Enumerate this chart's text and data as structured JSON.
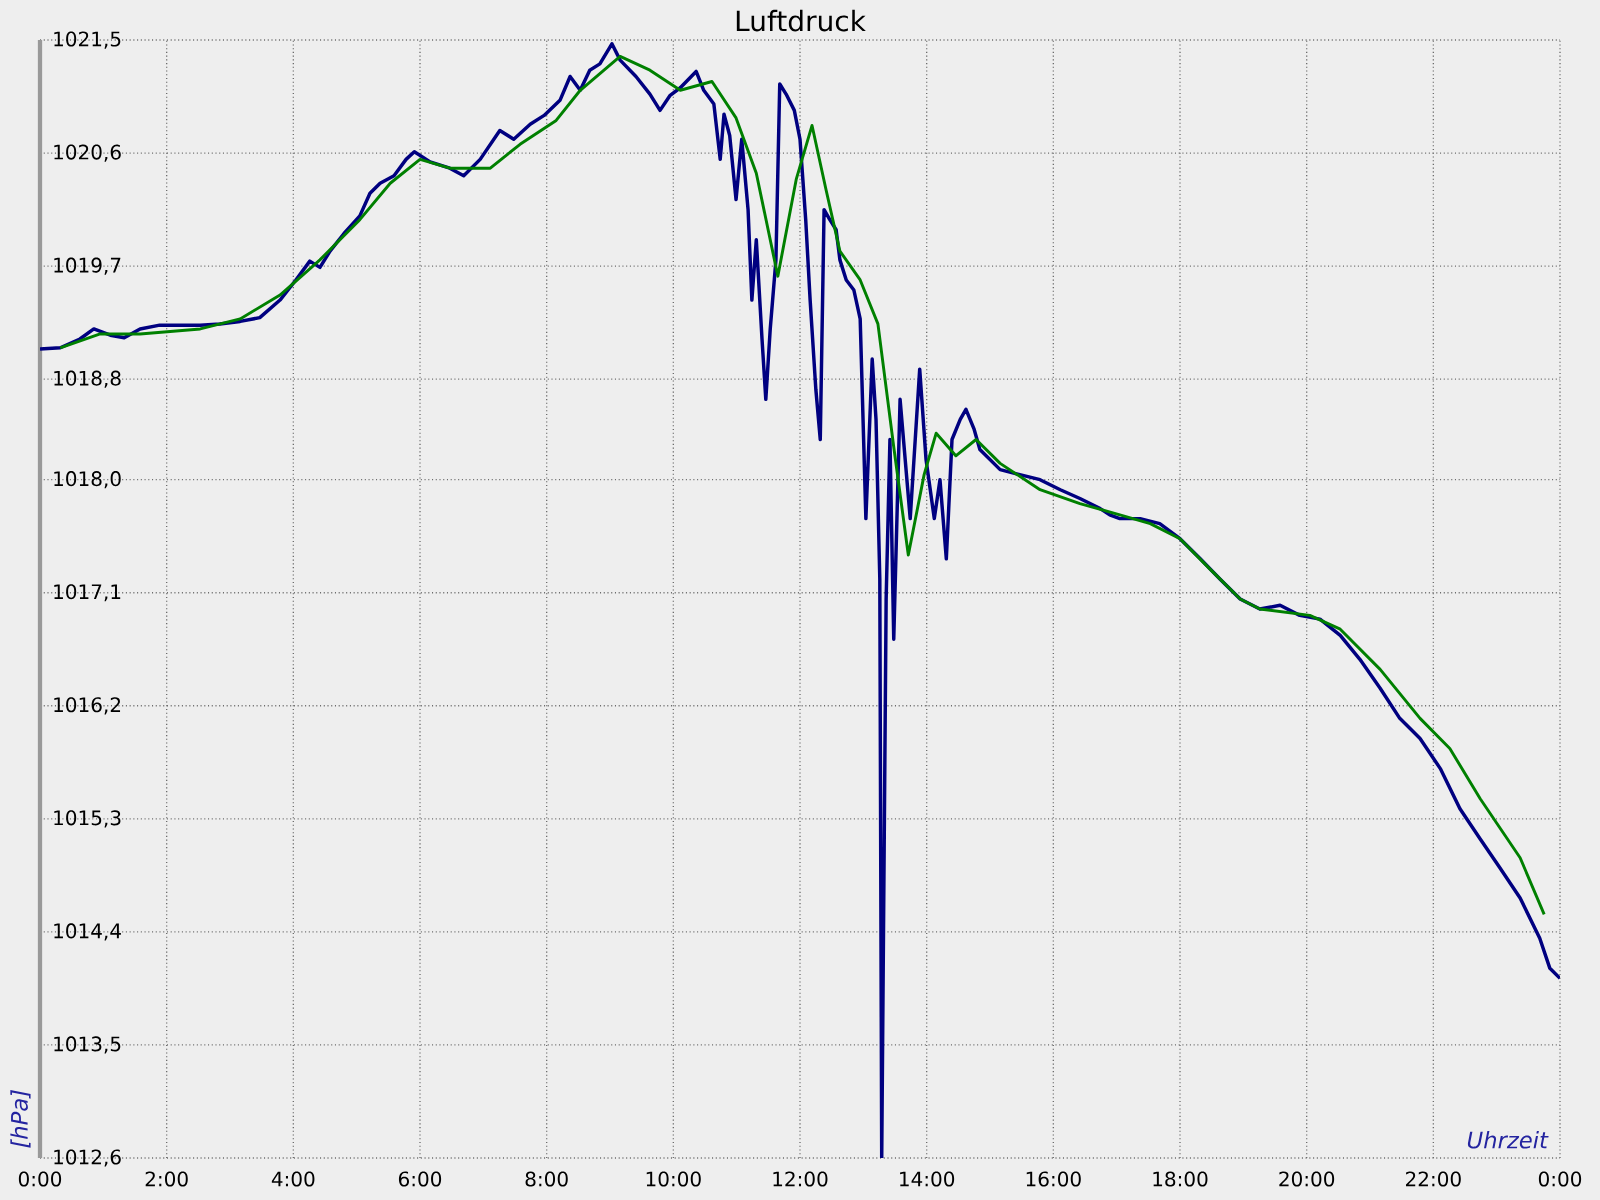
{
  "chart_data": {
    "type": "line",
    "title": "Luftdruck",
    "xlabel": "Uhrzeit",
    "ylabel": "[hPa]",
    "xlim": [
      0,
      24
    ],
    "ylim": [
      1012.6,
      1021.5
    ],
    "grid": true,
    "xticks": [
      {
        "value": 0,
        "label": "0:00"
      },
      {
        "value": 2,
        "label": "2:00"
      },
      {
        "value": 4,
        "label": "4:00"
      },
      {
        "value": 6,
        "label": "6:00"
      },
      {
        "value": 8,
        "label": "8:00"
      },
      {
        "value": 10,
        "label": "10:00"
      },
      {
        "value": 12,
        "label": "12:00"
      },
      {
        "value": 14,
        "label": "14:00"
      },
      {
        "value": 16,
        "label": "16:00"
      },
      {
        "value": 18,
        "label": "18:00"
      },
      {
        "value": 20,
        "label": "20:00"
      },
      {
        "value": 22,
        "label": "22:00"
      },
      {
        "value": 24,
        "label": "0:00"
      }
    ],
    "yticks": [
      {
        "value": 1012.6,
        "label": "1012,6"
      },
      {
        "value": 1013.5,
        "label": "1013,5"
      },
      {
        "value": 1014.4,
        "label": "1014,4"
      },
      {
        "value": 1015.3,
        "label": "1015,3"
      },
      {
        "value": 1016.2,
        "label": "1016,2"
      },
      {
        "value": 1017.1,
        "label": "1017,1"
      },
      {
        "value": 1018.0,
        "label": "1018,0"
      },
      {
        "value": 1018.8,
        "label": "1018,8"
      },
      {
        "value": 1019.7,
        "label": "1019,7"
      },
      {
        "value": 1020.6,
        "label": "1020,6"
      },
      {
        "value": 1021.5,
        "label": "1021,5"
      }
    ],
    "series": [
      {
        "color": "#000080",
        "x": [
          0,
          0.32,
          0.63,
          0.85,
          1.11,
          1.33,
          1.58,
          1.89,
          2.21,
          2.53,
          2.84,
          3.16,
          3.47,
          3.79,
          4.04,
          4.26,
          4.42,
          4.58,
          4.8,
          5.05,
          5.21,
          5.37,
          5.59,
          5.78,
          5.91,
          6.16,
          6.47,
          6.69,
          6.95,
          7.26,
          7.48,
          7.74,
          7.96,
          8.21,
          8.37,
          8.53,
          8.68,
          8.84,
          9.03,
          9.16,
          9.41,
          9.63,
          9.79,
          9.95,
          10.11,
          10.36,
          10.48,
          10.64,
          10.74,
          10.8,
          10.89,
          10.99,
          11.08,
          11.18,
          11.24,
          11.31,
          11.4,
          11.46,
          11.53,
          11.62,
          11.68,
          11.78,
          11.91,
          12.0,
          12.09,
          12.16,
          12.25,
          12.32,
          12.38,
          12.47,
          12.57,
          12.63,
          12.73,
          12.85,
          12.95,
          13.04,
          13.14,
          13.2,
          13.26,
          13.29,
          13.36,
          13.42,
          13.48,
          13.58,
          13.74,
          13.89,
          13.99,
          14.12,
          14.21,
          14.31,
          14.4,
          14.53,
          14.62,
          14.75,
          14.84,
          15.0,
          15.16,
          15.47,
          15.79,
          16.11,
          16.42,
          16.74,
          16.89,
          17.05,
          17.37,
          17.68,
          18.0,
          18.32,
          18.63,
          18.95,
          19.26,
          19.58,
          19.89,
          20.21,
          20.53,
          20.84,
          21.16,
          21.47,
          21.79,
          22.11,
          22.42,
          22.74,
          23.05,
          23.37,
          23.68,
          23.84,
          24
        ],
        "values": [
          1019.04,
          1019.05,
          1019.12,
          1019.2,
          1019.15,
          1019.13,
          1019.2,
          1019.23,
          1019.23,
          1019.23,
          1019.24,
          1019.26,
          1019.29,
          1019.43,
          1019.59,
          1019.74,
          1019.69,
          1019.82,
          1019.96,
          1020.1,
          1020.28,
          1020.36,
          1020.42,
          1020.55,
          1020.61,
          1020.53,
          1020.48,
          1020.42,
          1020.55,
          1020.78,
          1020.71,
          1020.83,
          1020.9,
          1021.02,
          1021.21,
          1021.1,
          1021.26,
          1021.31,
          1021.47,
          1021.34,
          1021.21,
          1021.07,
          1020.94,
          1021.06,
          1021.12,
          1021.25,
          1021.1,
          1020.99,
          1020.55,
          1020.91,
          1020.74,
          1020.23,
          1020.71,
          1020.15,
          1019.43,
          1019.91,
          1019.12,
          1018.64,
          1019.2,
          1019.75,
          1021.15,
          1021.07,
          1020.94,
          1020.71,
          1020.07,
          1019.43,
          1018.72,
          1018.32,
          1020.15,
          1020.07,
          1019.99,
          1019.75,
          1019.59,
          1019.51,
          1019.28,
          1017.69,
          1018.96,
          1018.48,
          1017.21,
          1012.6,
          1017.05,
          1018.32,
          1016.73,
          1018.64,
          1017.69,
          1018.88,
          1018.16,
          1017.69,
          1018.0,
          1017.37,
          1018.32,
          1018.48,
          1018.56,
          1018.4,
          1018.24,
          1018.16,
          1018.08,
          1018.04,
          1018.0,
          1017.92,
          1017.85,
          1017.77,
          1017.72,
          1017.69,
          1017.69,
          1017.65,
          1017.53,
          1017.37,
          1017.21,
          1017.05,
          1016.97,
          1017.0,
          1016.92,
          1016.89,
          1016.76,
          1016.57,
          1016.34,
          1016.1,
          1015.94,
          1015.7,
          1015.38,
          1015.14,
          1014.91,
          1014.67,
          1014.35,
          1014.11,
          1014.03
        ]
      },
      {
        "color": "#008000",
        "x": [
          0.32,
          0.95,
          1.58,
          2.53,
          3.16,
          3.79,
          4.42,
          5.05,
          5.53,
          6.0,
          6.47,
          7.11,
          7.58,
          8.15,
          8.53,
          9.16,
          9.63,
          10.11,
          10.61,
          10.99,
          11.31,
          11.65,
          11.94,
          12.19,
          12.41,
          12.63,
          12.95,
          13.23,
          13.48,
          13.71,
          13.96,
          14.15,
          14.46,
          14.78,
          15.16,
          15.79,
          16.42,
          17.05,
          17.53,
          18.0,
          18.47,
          18.95,
          19.26,
          20.05,
          20.53,
          21.16,
          21.79,
          22.26,
          22.74,
          23.37,
          23.75
        ],
        "values": [
          1019.05,
          1019.16,
          1019.16,
          1019.2,
          1019.28,
          1019.47,
          1019.75,
          1020.07,
          1020.36,
          1020.55,
          1020.48,
          1020.48,
          1020.67,
          1020.86,
          1021.1,
          1021.37,
          1021.26,
          1021.1,
          1021.17,
          1020.88,
          1020.44,
          1019.62,
          1020.39,
          1020.82,
          1020.31,
          1019.82,
          1019.59,
          1019.24,
          1018.26,
          1017.4,
          1018.04,
          1018.37,
          1018.19,
          1018.32,
          1018.13,
          1017.92,
          1017.81,
          1017.72,
          1017.65,
          1017.53,
          1017.29,
          1017.05,
          1016.97,
          1016.92,
          1016.81,
          1016.49,
          1016.1,
          1015.86,
          1015.46,
          1014.99,
          1014.54
        ]
      }
    ]
  }
}
